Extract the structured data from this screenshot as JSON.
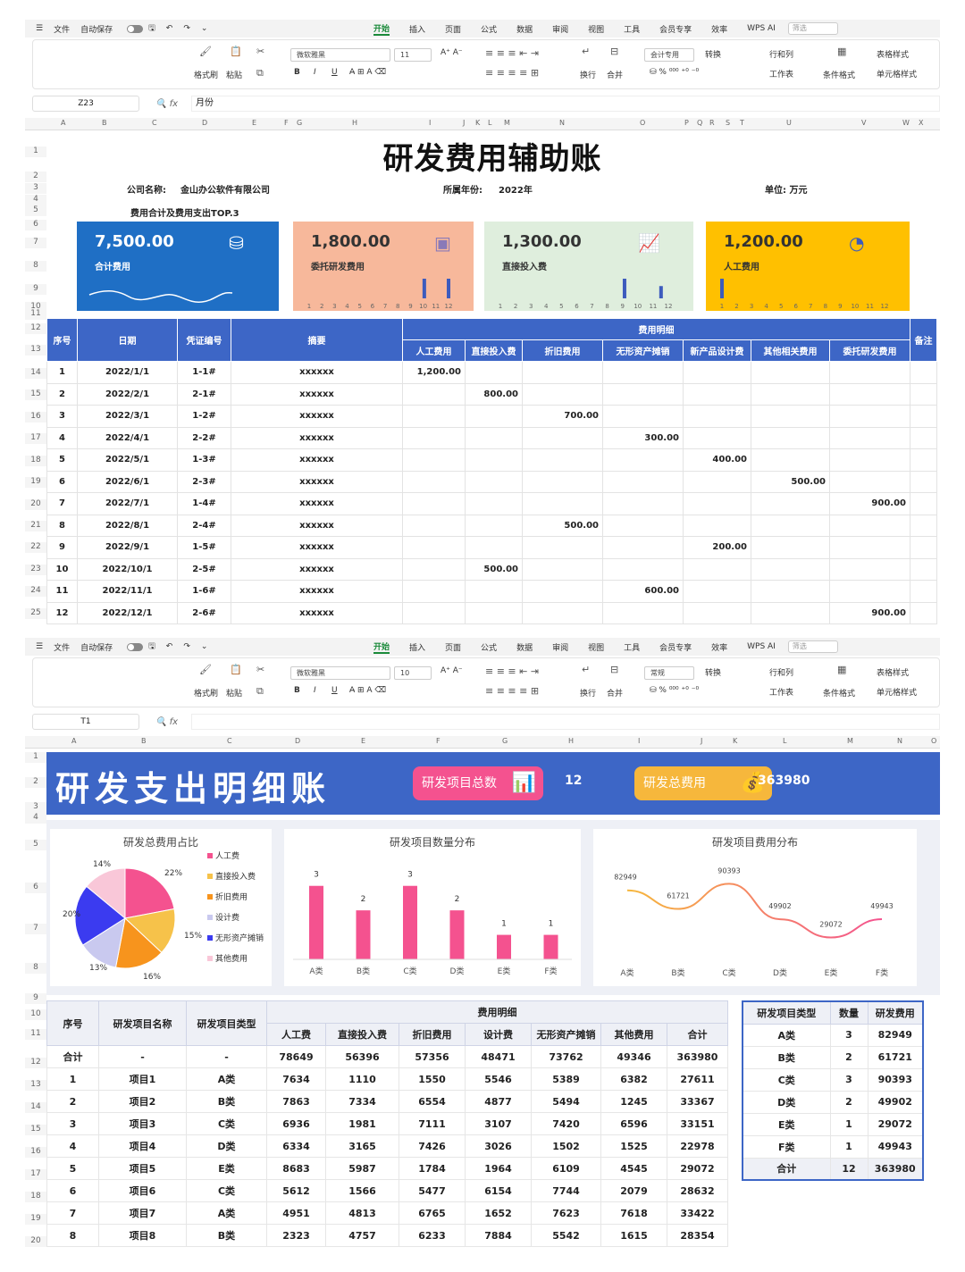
{
  "app": {
    "file_menu": "文件",
    "autosave": "自动保存",
    "tabs": [
      "开始",
      "插入",
      "页面",
      "公式",
      "数据",
      "审阅",
      "视图",
      "工具",
      "会员专享",
      "效率",
      "WPS AI"
    ],
    "search_placeholder": "筛选"
  },
  "ribbon": {
    "format_painter": "格式刷",
    "paste": "粘贴",
    "wrap": "换行",
    "merge": "合并",
    "convert": "转换",
    "row_col": "行和列",
    "worksheet": "工作表",
    "cond_format": "条件格式",
    "table_style": "表格样式",
    "cell_style": "单元格样式",
    "bold": "B",
    "italic": "I",
    "underline": "U"
  },
  "sheet1": {
    "font_name": "微软雅黑",
    "font_size": "11",
    "num_format": "会计专用",
    "namebox": "Z23",
    "formula": "月份",
    "col_letters": [
      "A",
      "B",
      "C",
      "D",
      "E",
      "F",
      "G",
      "H",
      "I",
      "J",
      "K",
      "L",
      "M",
      "N",
      "O",
      "P",
      "Q",
      "R",
      "S",
      "T",
      "U",
      "V",
      "W",
      "X"
    ],
    "row_numbers": [
      "1",
      "2",
      "3",
      "4",
      "5",
      "6",
      "7",
      "8",
      "9",
      "10",
      "11",
      "12",
      "13",
      "14",
      "15",
      "16",
      "17",
      "18",
      "19",
      "20",
      "21",
      "22",
      "23",
      "24",
      "25"
    ],
    "title": "研发费用辅助账",
    "company_label": "公司名称:",
    "company": "金山办公软件有限公司",
    "year_label": "所属年份:",
    "year": "2022年",
    "unit": "单位: 万元",
    "top3_label": "费用合计及费用支出TOP.3",
    "month_ticks": [
      "1",
      "2",
      "3",
      "4",
      "5",
      "6",
      "7",
      "8",
      "9",
      "10",
      "11",
      "12"
    ],
    "cards": [
      {
        "value": "7,500.00",
        "label": "合计费用",
        "color": "#1f6fc5"
      },
      {
        "value": "1,800.00",
        "label": "委托研发费用",
        "color": "#f7b89b"
      },
      {
        "value": "1,300.00",
        "label": "直接投入费",
        "color": "#dfeedd"
      },
      {
        "value": "1,200.00",
        "label": "人工费用",
        "color": "#ffc000"
      }
    ],
    "card_sparks": {
      "entrust": [
        0,
        0,
        0,
        0,
        0,
        0,
        0,
        0,
        0,
        0,
        0,
        0,
        0,
        0,
        0,
        0,
        0,
        0,
        0,
        900,
        0,
        0,
        0,
        900
      ],
      "direct": [
        0,
        0,
        0,
        0,
        0,
        0,
        0,
        0,
        0,
        0,
        0,
        0,
        0,
        0,
        0,
        0,
        0,
        800,
        0,
        0,
        0,
        0,
        500,
        0
      ],
      "labor": [
        1200,
        0,
        0,
        0,
        0,
        0,
        0,
        0,
        0,
        0,
        0,
        0,
        0,
        0,
        0,
        0,
        0,
        0,
        0,
        0,
        0,
        0,
        0,
        0
      ]
    },
    "headers": {
      "seq": "序号",
      "date": "日期",
      "voucher": "凭证编号",
      "summary": "摘要",
      "detail": "费用明细",
      "note": "备注",
      "cols": [
        "人工费用",
        "直接投入费",
        "折旧费用",
        "无形资产摊销",
        "新产品设计费",
        "其他相关费用",
        "委托研发费用"
      ]
    },
    "rows": [
      {
        "seq": "1",
        "date": "2022/1/1",
        "voucher": "1-1#",
        "summary": "xxxxxx",
        "vals": [
          "1,200.00",
          "",
          "",
          "",
          "",
          "",
          ""
        ]
      },
      {
        "seq": "2",
        "date": "2022/2/1",
        "voucher": "2-1#",
        "summary": "xxxxxx",
        "vals": [
          "",
          "800.00",
          "",
          "",
          "",
          "",
          ""
        ]
      },
      {
        "seq": "3",
        "date": "2022/3/1",
        "voucher": "1-2#",
        "summary": "xxxxxx",
        "vals": [
          "",
          "",
          "700.00",
          "",
          "",
          "",
          ""
        ]
      },
      {
        "seq": "4",
        "date": "2022/4/1",
        "voucher": "2-2#",
        "summary": "xxxxxx",
        "vals": [
          "",
          "",
          "",
          "300.00",
          "",
          "",
          ""
        ]
      },
      {
        "seq": "5",
        "date": "2022/5/1",
        "voucher": "1-3#",
        "summary": "xxxxxx",
        "vals": [
          "",
          "",
          "",
          "",
          "400.00",
          "",
          ""
        ]
      },
      {
        "seq": "6",
        "date": "2022/6/1",
        "voucher": "2-3#",
        "summary": "xxxxxx",
        "vals": [
          "",
          "",
          "",
          "",
          "",
          "500.00",
          ""
        ]
      },
      {
        "seq": "7",
        "date": "2022/7/1",
        "voucher": "1-4#",
        "summary": "xxxxxx",
        "vals": [
          "",
          "",
          "",
          "",
          "",
          "",
          "900.00"
        ]
      },
      {
        "seq": "8",
        "date": "2022/8/1",
        "voucher": "2-4#",
        "summary": "xxxxxx",
        "vals": [
          "",
          "",
          "500.00",
          "",
          "",
          "",
          ""
        ]
      },
      {
        "seq": "9",
        "date": "2022/9/1",
        "voucher": "1-5#",
        "summary": "xxxxxx",
        "vals": [
          "",
          "",
          "",
          "",
          "200.00",
          "",
          ""
        ]
      },
      {
        "seq": "10",
        "date": "2022/10/1",
        "voucher": "2-5#",
        "summary": "xxxxxx",
        "vals": [
          "",
          "500.00",
          "",
          "",
          "",
          "",
          ""
        ]
      },
      {
        "seq": "11",
        "date": "2022/11/1",
        "voucher": "1-6#",
        "summary": "xxxxxx",
        "vals": [
          "",
          "",
          "",
          "600.00",
          "",
          "",
          ""
        ]
      },
      {
        "seq": "12",
        "date": "2022/12/1",
        "voucher": "2-6#",
        "summary": "xxxxxx",
        "vals": [
          "",
          "",
          "",
          "",
          "",
          "",
          "900.00"
        ]
      }
    ]
  },
  "sheet2": {
    "font_name": "微软雅黑",
    "font_size": "10",
    "num_format": "常规",
    "namebox": "T1",
    "formula": "",
    "col_letters": [
      "A",
      "B",
      "C",
      "D",
      "E",
      "F",
      "G",
      "H",
      "I",
      "J",
      "K",
      "L",
      "M",
      "N",
      "O"
    ],
    "row_numbers": [
      "1",
      "2",
      "3",
      "4",
      "5",
      "6",
      "7",
      "8",
      "9",
      "10",
      "11",
      "12",
      "13",
      "14",
      "15",
      "16",
      "17",
      "18",
      "19",
      "20"
    ],
    "title": "研发支出明细账",
    "project_count_label": "研发项目总数",
    "project_count": "12",
    "total_cost_label": "研发总费用",
    "total_cost": "363980",
    "pie_title": "研发总费用占比",
    "bar_title": "研发项目数量分布",
    "line_title": "研发项目费用分布",
    "legend": [
      {
        "name": "人工费",
        "color": "#f4528f"
      },
      {
        "name": "直接投入费",
        "color": "#f6c24a"
      },
      {
        "name": "折旧费用",
        "color": "#f7941d"
      },
      {
        "name": "设计费",
        "color": "#c9c9ef"
      },
      {
        "name": "无形资产摊销",
        "color": "#3b3bf0"
      },
      {
        "name": "其他费用",
        "color": "#f9c7d8"
      }
    ],
    "headers": {
      "seq": "序号",
      "name": "研发项目名称",
      "type": "研发项目类型",
      "detail": "费用明细",
      "cols": [
        "人工费",
        "直接投入费",
        "折旧费用",
        "设计费",
        "无形资产摊销",
        "其他费用",
        "合计"
      ]
    },
    "total_row": {
      "seq": "合计",
      "name": "-",
      "type": "-",
      "vals": [
        "78649",
        "56396",
        "57356",
        "48471",
        "73762",
        "49346",
        "363980"
      ]
    },
    "rows": [
      {
        "seq": "1",
        "name": "项目1",
        "type": "A类",
        "vals": [
          "7634",
          "1110",
          "1550",
          "5546",
          "5389",
          "6382",
          "27611"
        ]
      },
      {
        "seq": "2",
        "name": "项目2",
        "type": "B类",
        "vals": [
          "7863",
          "7334",
          "6554",
          "4877",
          "5494",
          "1245",
          "33367"
        ]
      },
      {
        "seq": "3",
        "name": "项目3",
        "type": "C类",
        "vals": [
          "6936",
          "1981",
          "7111",
          "3107",
          "7420",
          "6596",
          "33151"
        ]
      },
      {
        "seq": "4",
        "name": "项目4",
        "type": "D类",
        "vals": [
          "6334",
          "3165",
          "7426",
          "3026",
          "1502",
          "1525",
          "22978"
        ]
      },
      {
        "seq": "5",
        "name": "项目5",
        "type": "E类",
        "vals": [
          "8683",
          "5987",
          "1784",
          "1964",
          "6109",
          "4545",
          "29072"
        ]
      },
      {
        "seq": "6",
        "name": "项目6",
        "type": "C类",
        "vals": [
          "5612",
          "1566",
          "5477",
          "6154",
          "7744",
          "2079",
          "28632"
        ]
      },
      {
        "seq": "7",
        "name": "项目7",
        "type": "A类",
        "vals": [
          "4951",
          "4813",
          "6765",
          "1652",
          "7623",
          "7618",
          "33422"
        ]
      },
      {
        "seq": "8",
        "name": "项目8",
        "type": "B类",
        "vals": [
          "2323",
          "4757",
          "6233",
          "7884",
          "5542",
          "1615",
          "28354"
        ]
      }
    ],
    "summary_headers": [
      "研发项目类型",
      "数量",
      "研发费用"
    ],
    "summary_rows": [
      {
        "type": "A类",
        "count": "3",
        "cost": "82949"
      },
      {
        "type": "B类",
        "count": "2",
        "cost": "61721"
      },
      {
        "type": "C类",
        "count": "3",
        "cost": "90393"
      },
      {
        "type": "D类",
        "count": "2",
        "cost": "49902"
      },
      {
        "type": "E类",
        "count": "1",
        "cost": "29072"
      },
      {
        "type": "F类",
        "count": "1",
        "cost": "49943"
      }
    ],
    "summary_total": {
      "type": "合计",
      "count": "12",
      "cost": "363980"
    }
  },
  "chart_data": [
    {
      "type": "pie",
      "title": "研发总费用占比",
      "categories": [
        "人工费",
        "直接投入费",
        "折旧费用",
        "设计费",
        "无形资产摊销",
        "其他费用"
      ],
      "values": [
        22,
        15,
        16,
        13,
        20,
        14
      ],
      "labels": [
        "22%",
        "15%",
        "16%",
        "13%",
        "20%",
        "14%"
      ],
      "legend": "right"
    },
    {
      "type": "bar",
      "title": "研发项目数量分布",
      "categories": [
        "A类",
        "B类",
        "C类",
        "D类",
        "E类",
        "F类"
      ],
      "values": [
        3,
        2,
        3,
        2,
        1,
        1
      ],
      "color": "#f4528f",
      "ylim": [
        0,
        3.5
      ]
    },
    {
      "type": "line",
      "title": "研发项目费用分布",
      "categories": [
        "A类",
        "B类",
        "C类",
        "D类",
        "E类",
        "F类"
      ],
      "values": [
        82949,
        61721,
        90393,
        49902,
        29072,
        49943
      ],
      "ylim": [
        0,
        100000
      ]
    }
  ]
}
